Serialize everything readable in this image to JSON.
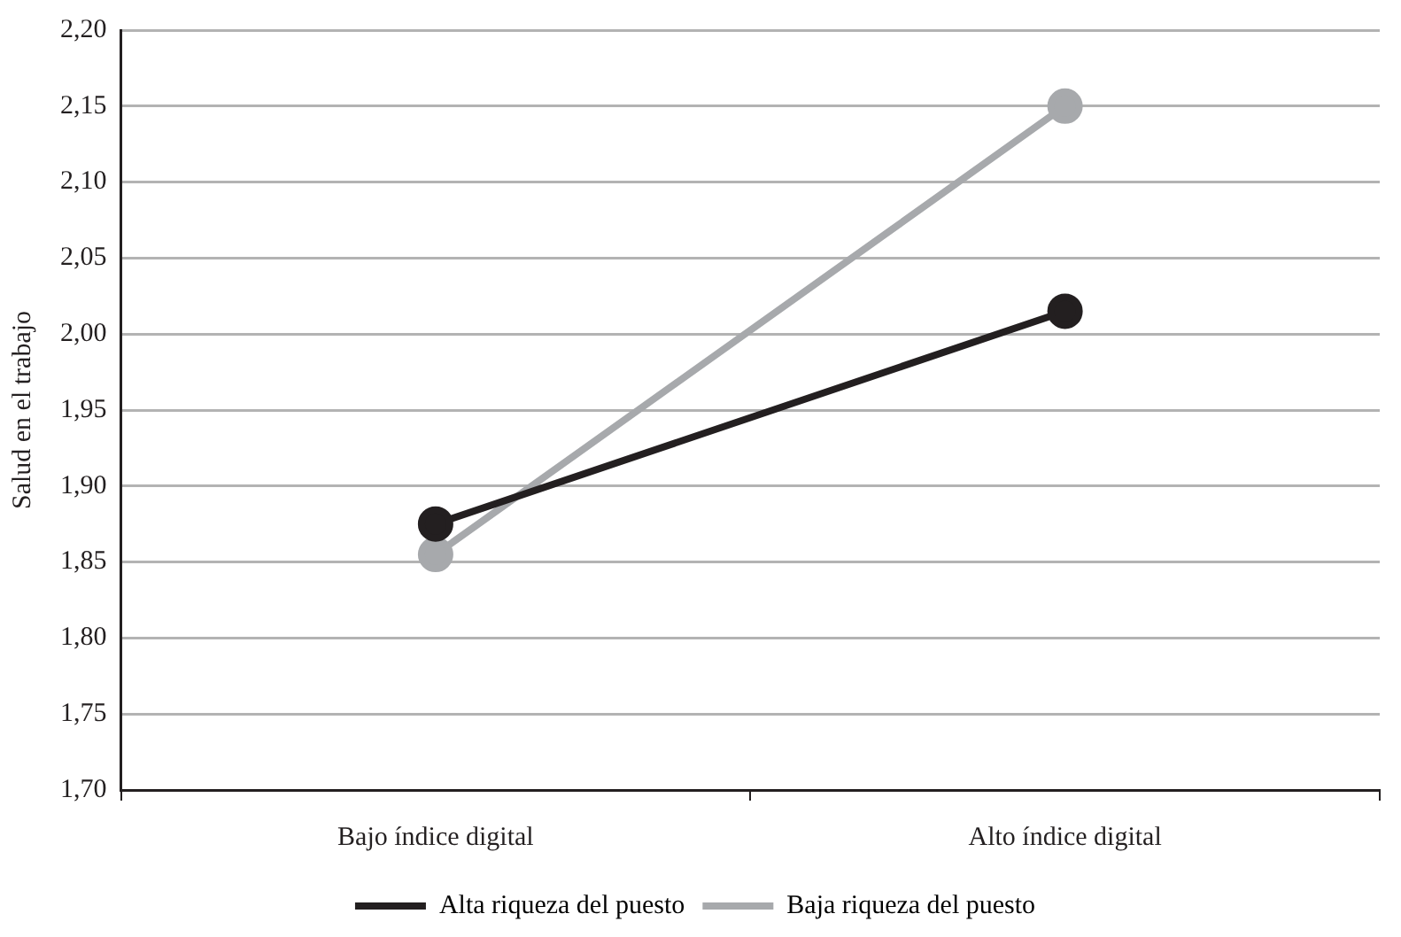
{
  "chart_data": {
    "type": "line",
    "ylabel": "Salud en el trabajo",
    "categories": [
      "Bajo índice digital",
      "Alto índice digital"
    ],
    "series": [
      {
        "name": "Alta riqueza del puesto",
        "color": "#231f20",
        "values": [
          1.875,
          2.015
        ]
      },
      {
        "name": "Baja riqueza del puesto",
        "color": "#a7a9ac",
        "values": [
          1.855,
          2.15
        ]
      }
    ],
    "ylim": [
      1.7,
      2.2
    ],
    "yticks": [
      {
        "value": 1.7,
        "label": "1,70"
      },
      {
        "value": 1.75,
        "label": "1,75"
      },
      {
        "value": 1.8,
        "label": "1,80"
      },
      {
        "value": 1.85,
        "label": "1,85"
      },
      {
        "value": 1.9,
        "label": "1,90"
      },
      {
        "value": 1.95,
        "label": "1,95"
      },
      {
        "value": 2.0,
        "label": "2,00"
      },
      {
        "value": 2.05,
        "label": "2,05"
      },
      {
        "value": 2.1,
        "label": "2,10"
      },
      {
        "value": 2.15,
        "label": "2,15"
      },
      {
        "value": 2.2,
        "label": "2,20"
      }
    ],
    "grid": "y",
    "legend": "bottom",
    "marker": "circle",
    "line_style": "solid"
  }
}
